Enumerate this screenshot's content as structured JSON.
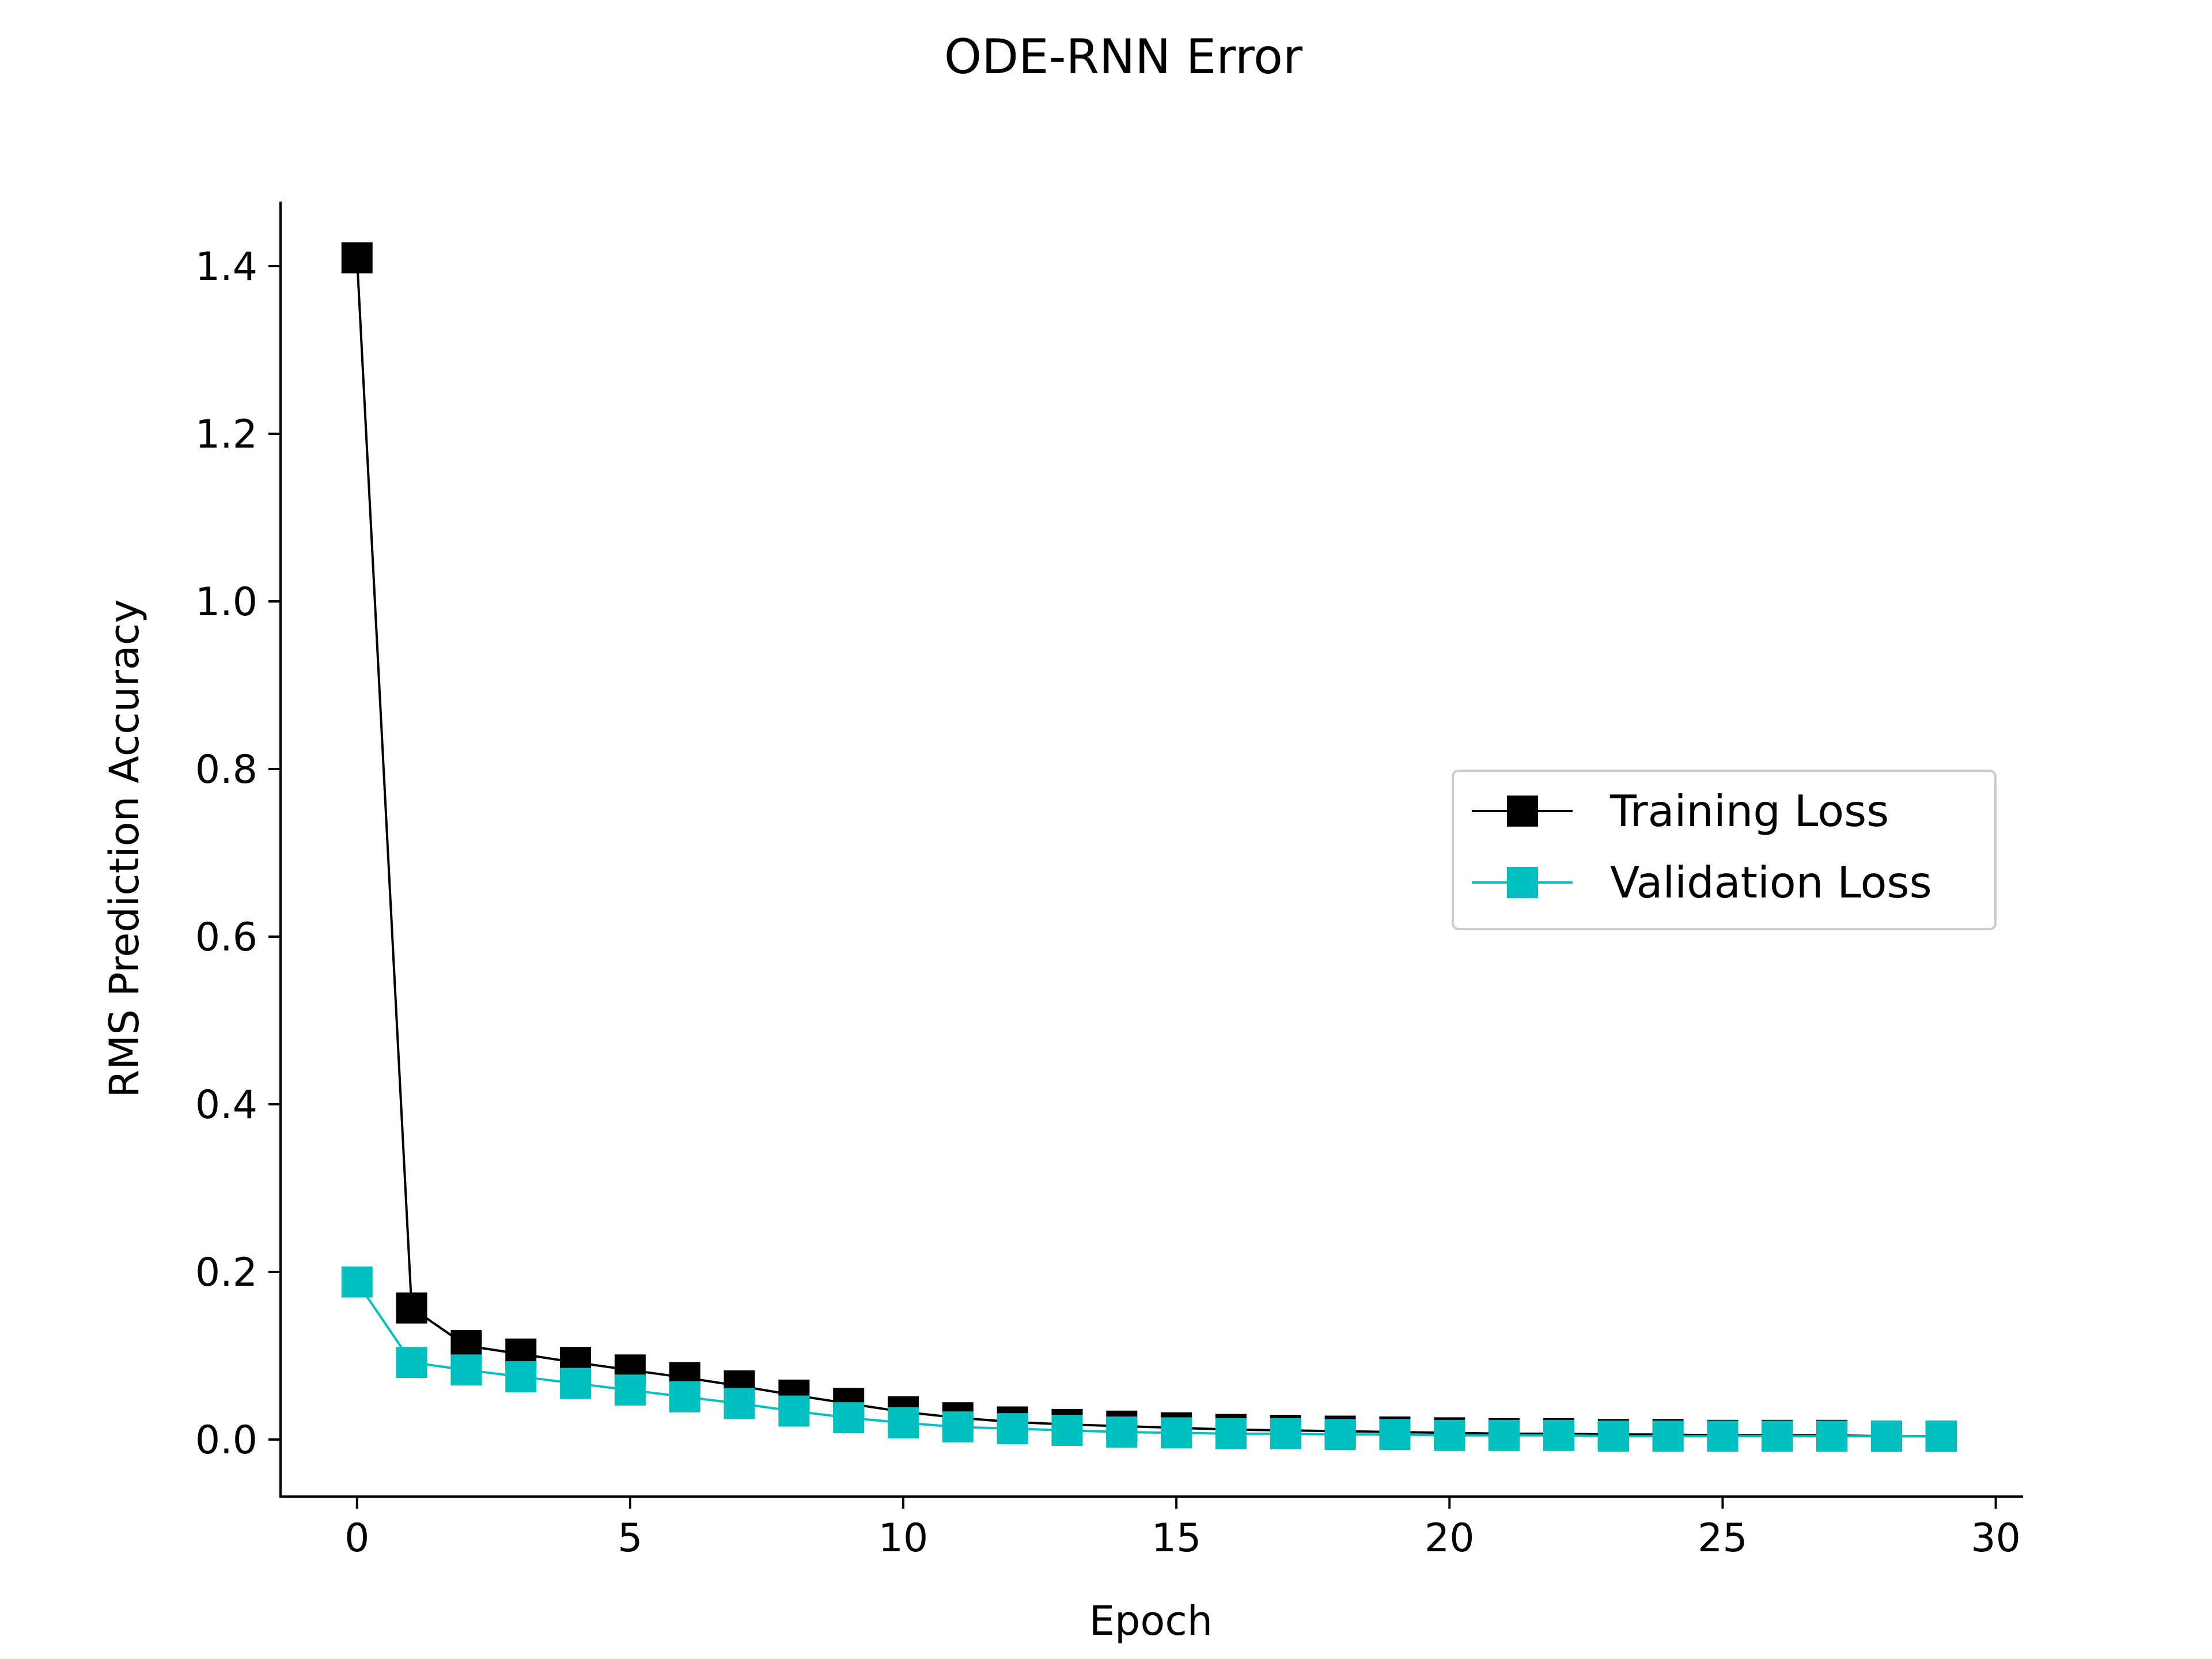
{
  "chart_data": {
    "type": "line",
    "title": "ODE-RNN Error",
    "xlabel": "Epoch",
    "ylabel": "RMS Prediction Accuracy",
    "xlim": [
      -1.4,
      30.5
    ],
    "ylim": [
      -0.068,
      1.477
    ],
    "xticks": [
      0,
      5,
      10,
      15,
      20,
      25,
      30
    ],
    "yticks": [
      0.0,
      0.2,
      0.4,
      0.6,
      0.8,
      1.0,
      1.2,
      1.4
    ],
    "ytick_labels": [
      "0.0",
      "0.2",
      "0.4",
      "0.6",
      "0.8",
      "1.0",
      "1.2",
      "1.4"
    ],
    "grid": false,
    "legend_position": "center-right",
    "x": [
      0,
      1,
      2,
      3,
      4,
      5,
      6,
      7,
      8,
      9,
      10,
      11,
      12,
      13,
      14,
      15,
      16,
      17,
      18,
      19,
      20,
      21,
      22,
      23,
      24,
      25,
      26,
      27,
      28,
      29
    ],
    "series": [
      {
        "name": "Training Loss",
        "color": "#000000",
        "marker": "square",
        "values": [
          1.41,
          0.157,
          0.112,
          0.102,
          0.092,
          0.083,
          0.074,
          0.064,
          0.053,
          0.043,
          0.033,
          0.026,
          0.021,
          0.018,
          0.016,
          0.014,
          0.012,
          0.011,
          0.01,
          0.009,
          0.008,
          0.007,
          0.007,
          0.006,
          0.006,
          0.005,
          0.005,
          0.005,
          0.004,
          0.004
        ]
      },
      {
        "name": "Validation Loss",
        "color": "#00bfbf",
        "marker": "square",
        "values": [
          0.188,
          0.092,
          0.083,
          0.075,
          0.067,
          0.059,
          0.051,
          0.043,
          0.034,
          0.026,
          0.02,
          0.015,
          0.013,
          0.011,
          0.009,
          0.008,
          0.007,
          0.007,
          0.006,
          0.006,
          0.005,
          0.005,
          0.005,
          0.004,
          0.004,
          0.004,
          0.004,
          0.004,
          0.004,
          0.004
        ]
      }
    ]
  }
}
